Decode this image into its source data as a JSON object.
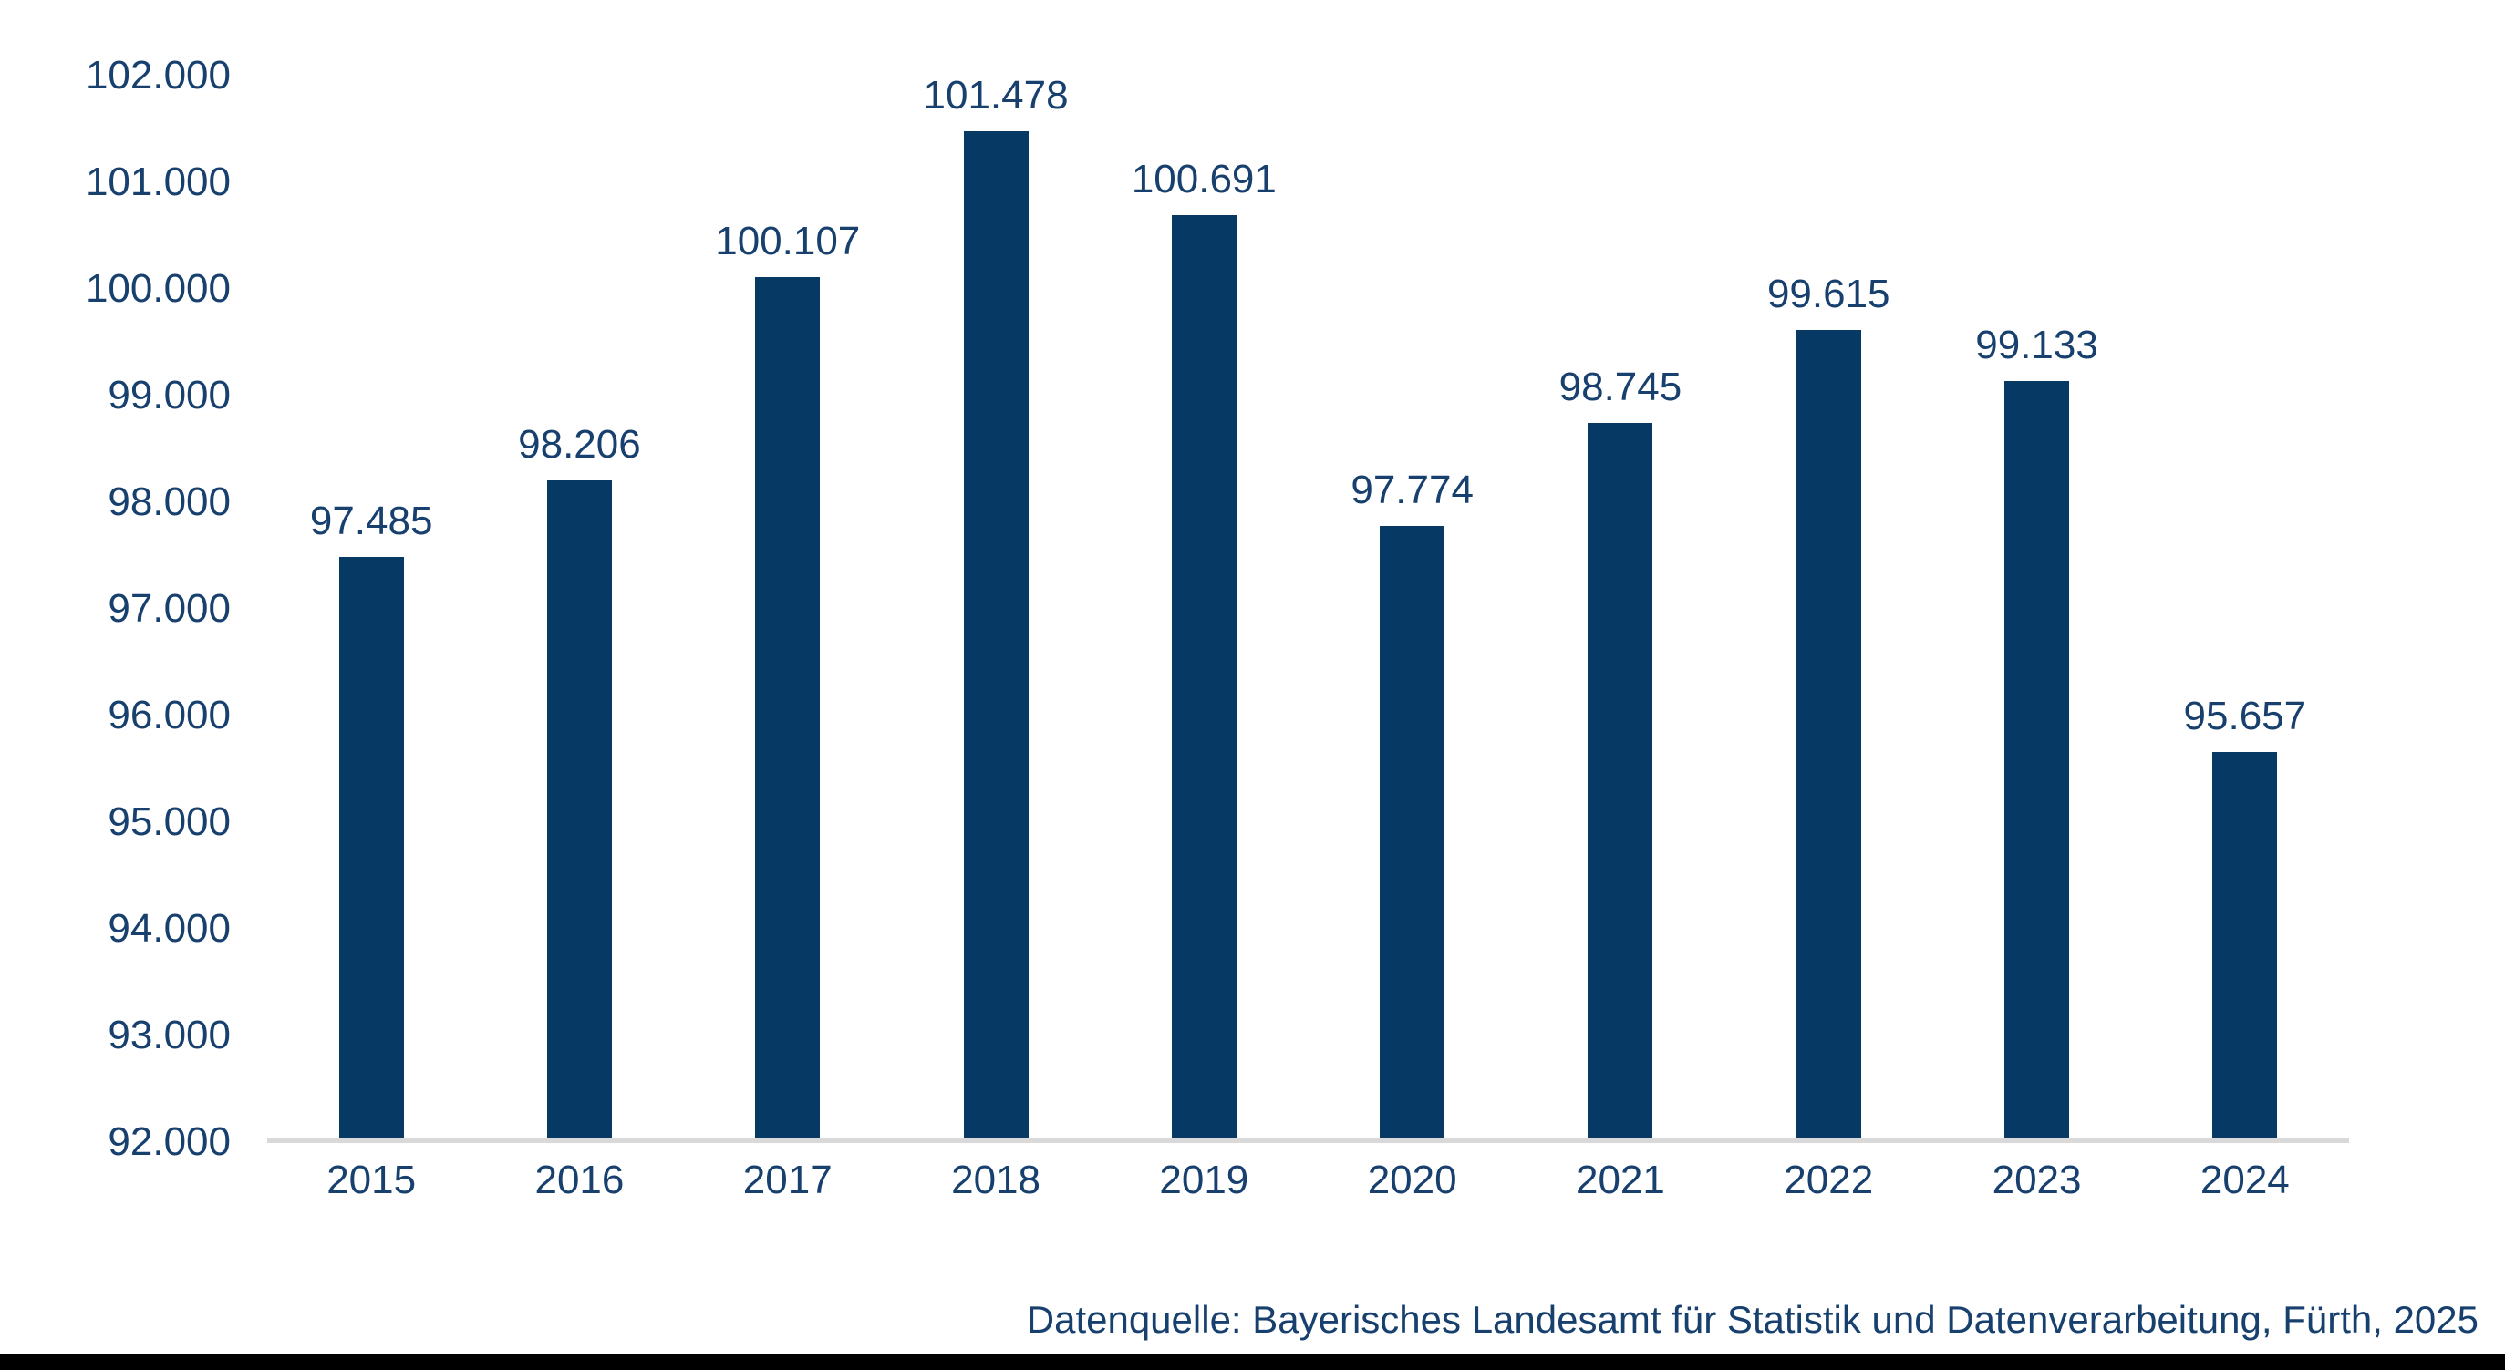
{
  "chart_data": {
    "type": "bar",
    "categories": [
      "2015",
      "2016",
      "2017",
      "2018",
      "2019",
      "2020",
      "2021",
      "2022",
      "2023",
      "2024"
    ],
    "values": [
      97485,
      98206,
      100107,
      101478,
      100691,
      97774,
      98745,
      99615,
      99133,
      95657
    ],
    "value_labels": [
      "97.485",
      "98.206",
      "100.107",
      "101.478",
      "100.691",
      "97.774",
      "98.745",
      "99.615",
      "99.133",
      "95.657"
    ],
    "title": "",
    "xlabel": "",
    "ylabel": "",
    "ylim": [
      92000,
      102000
    ],
    "yticks": [
      92000,
      93000,
      94000,
      95000,
      96000,
      97000,
      98000,
      99000,
      100000,
      101000,
      102000
    ],
    "ytick_labels": [
      "92.000",
      "93.000",
      "94.000",
      "95.000",
      "96.000",
      "97.000",
      "98.000",
      "99.000",
      "100.000",
      "101.000",
      "102.000"
    ],
    "grid": "off",
    "legend": "none",
    "bar_color": "#063a65",
    "text_color": "#17406e",
    "axis_line_color": "#d9d9d9"
  },
  "source_note": "Datenquelle: Bayerisches Landesamt für Statistik und Datenverarbeitung, Fürth, 2025",
  "footer_bar_color": "#000000"
}
